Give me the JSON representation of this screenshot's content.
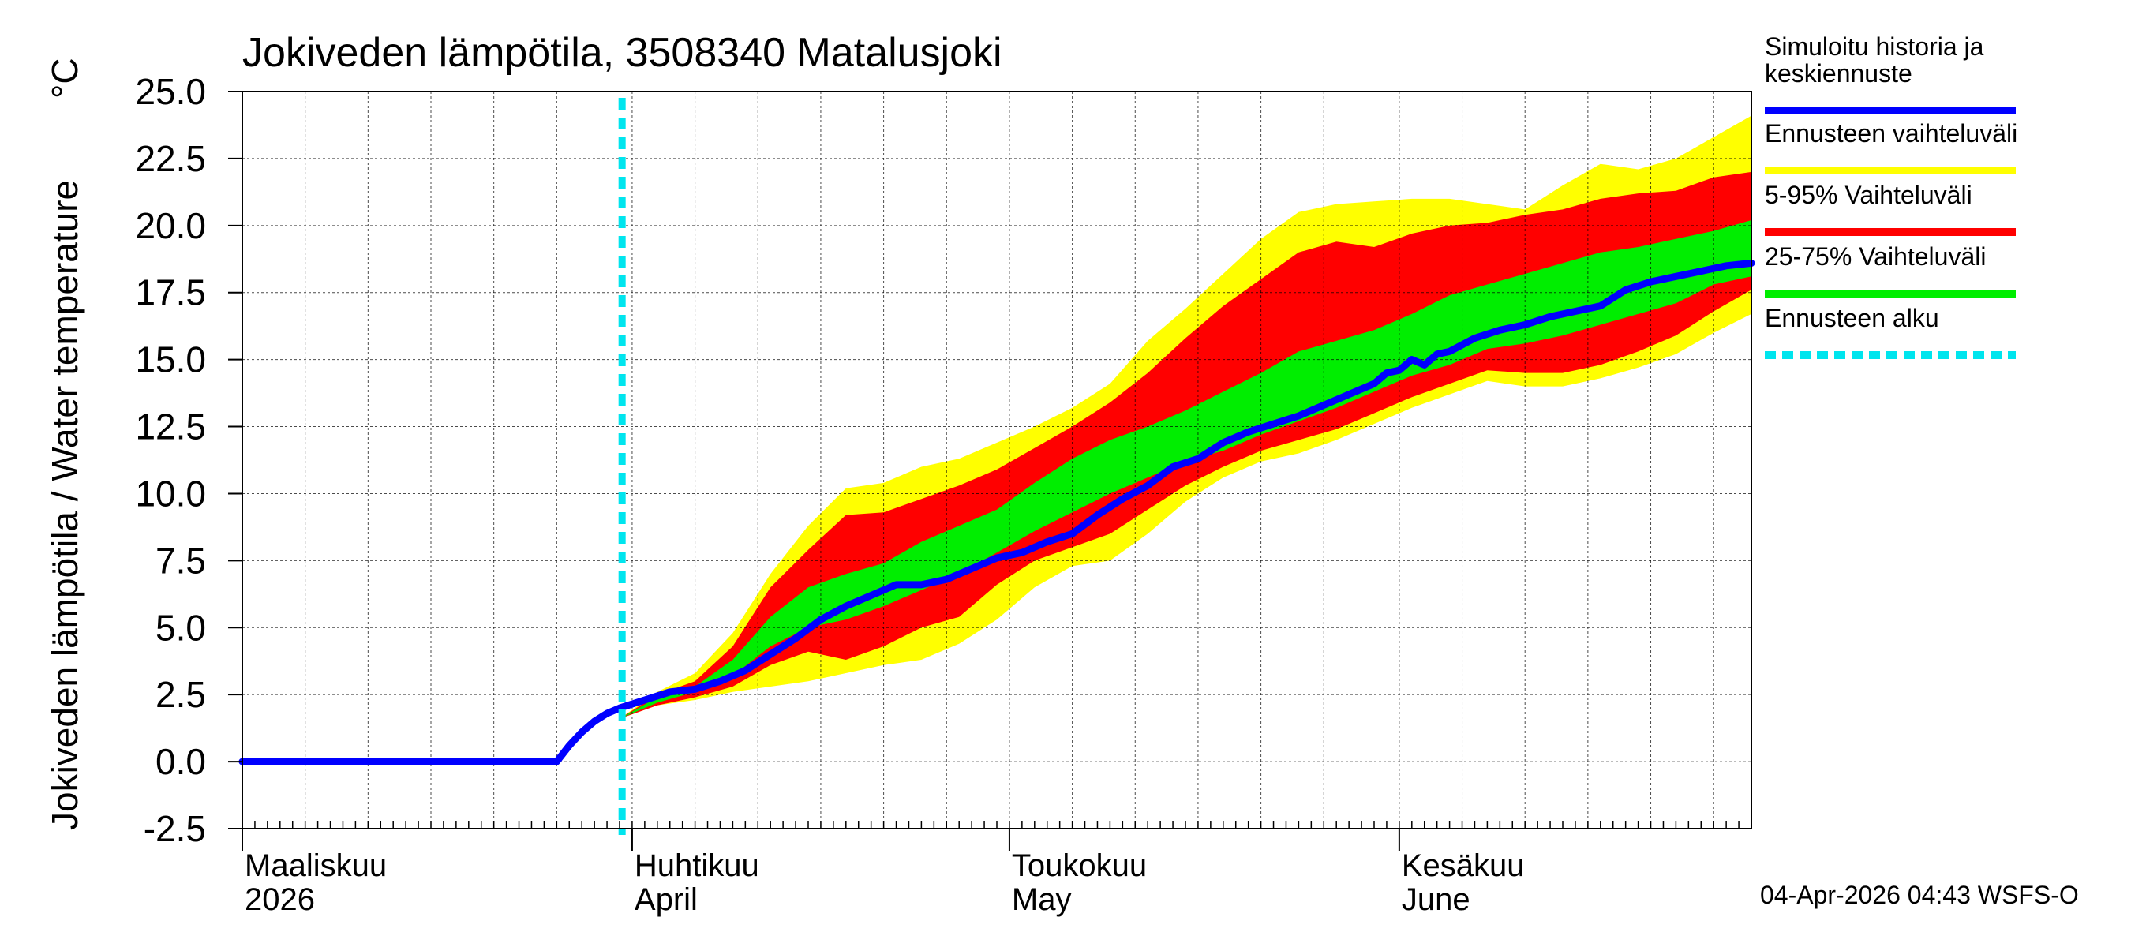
{
  "chart_data": {
    "type": "area",
    "title": "Jokiveden lämpötila, 3508340 Matalusjoki",
    "ylabel": "Jokiveden lämpötila / Water temperature",
    "yunit": "°C",
    "ylim": [
      -2.5,
      25.0
    ],
    "yticks": [
      -2.5,
      0.0,
      2.5,
      5.0,
      7.5,
      10.0,
      12.5,
      15.0,
      17.5,
      20.0,
      22.5,
      25.0
    ],
    "ytick_labels": [
      "-2.5",
      "0.0",
      "2.5",
      "5.0",
      "7.5",
      "10.0",
      "12.5",
      "15.0",
      "17.5",
      "20.0",
      "22.5",
      "25.0"
    ],
    "xlim_days": [
      0,
      120
    ],
    "month_ticks_days": [
      0,
      31,
      61,
      92
    ],
    "x_gridlines_days": [
      5,
      10,
      15,
      20,
      25,
      31,
      36,
      41,
      46,
      51,
      56,
      61,
      66,
      71,
      76,
      81,
      86,
      92,
      97,
      102,
      107,
      112,
      117
    ],
    "x_labels": [
      {
        "day": 0,
        "line1": "Maaliskuu",
        "line2": "2026"
      },
      {
        "day": 31,
        "line1": "Huhtikuu",
        "line2": "April"
      },
      {
        "day": 61,
        "line1": "Toukokuu",
        "line2": "May"
      },
      {
        "day": 92,
        "line1": "Kesäkuu",
        "line2": "June"
      }
    ],
    "forecast_start_day": 30.2,
    "bands": {
      "x_days": [
        30,
        33,
        36,
        39,
        42,
        45,
        48,
        51,
        54,
        57,
        60,
        63,
        66,
        69,
        72,
        75,
        78,
        81,
        84,
        87,
        90,
        93,
        96,
        99,
        102,
        105,
        108,
        111,
        114,
        117,
        120
      ],
      "ennuste_lower": [
        1.6,
        2.1,
        2.3,
        2.6,
        2.8,
        3.0,
        3.3,
        3.6,
        3.8,
        4.4,
        5.3,
        6.5,
        7.3,
        7.5,
        8.5,
        9.7,
        10.6,
        11.2,
        11.5,
        12.0,
        12.6,
        13.2,
        13.7,
        14.2,
        14.0,
        14.0,
        14.3,
        14.7,
        15.2,
        16.0,
        16.7
      ],
      "ennuste_upper": [
        1.6,
        2.6,
        3.3,
        4.8,
        7.0,
        8.8,
        10.2,
        10.4,
        11.0,
        11.3,
        11.9,
        12.5,
        13.2,
        14.1,
        15.7,
        16.9,
        18.2,
        19.5,
        20.5,
        20.8,
        20.9,
        21.0,
        21.0,
        20.8,
        20.6,
        21.5,
        22.3,
        22.1,
        22.5,
        23.3,
        24.1
      ],
      "p5": [
        1.6,
        2.1,
        2.4,
        2.8,
        3.6,
        4.1,
        3.8,
        4.3,
        5.0,
        5.4,
        6.6,
        7.5,
        8.0,
        8.5,
        9.4,
        10.3,
        11.0,
        11.6,
        12.0,
        12.4,
        13.0,
        13.6,
        14.1,
        14.6,
        14.5,
        14.5,
        14.8,
        15.3,
        15.9,
        16.8,
        17.6
      ],
      "p95": [
        1.6,
        2.5,
        3.0,
        4.3,
        6.5,
        7.9,
        9.2,
        9.3,
        9.8,
        10.3,
        10.9,
        11.7,
        12.5,
        13.4,
        14.5,
        15.8,
        17.0,
        18.0,
        19.0,
        19.4,
        19.2,
        19.7,
        20.0,
        20.1,
        20.4,
        20.6,
        21.0,
        21.2,
        21.3,
        21.8,
        22.0
      ],
      "p25": [
        1.6,
        2.2,
        2.6,
        3.2,
        4.3,
        5.0,
        5.3,
        5.8,
        6.4,
        7.0,
        7.8,
        8.6,
        9.3,
        10.0,
        10.6,
        11.2,
        11.6,
        12.2,
        12.7,
        13.2,
        13.8,
        14.4,
        14.8,
        15.4,
        15.6,
        15.9,
        16.3,
        16.7,
        17.1,
        17.8,
        18.1
      ],
      "p75": [
        1.6,
        2.4,
        2.8,
        3.8,
        5.4,
        6.5,
        7.0,
        7.4,
        8.2,
        8.8,
        9.4,
        10.4,
        11.3,
        12.0,
        12.5,
        13.1,
        13.8,
        14.5,
        15.3,
        15.7,
        16.1,
        16.7,
        17.4,
        17.8,
        18.2,
        18.6,
        19.0,
        19.2,
        19.5,
        19.8,
        20.2
      ]
    },
    "series": [
      {
        "name": "Simuloitu historia ja keskiennuste",
        "color": "#0000ff",
        "x": [
          0,
          10,
          20,
          25,
          26,
          27,
          28,
          29,
          30,
          32,
          34,
          36,
          38,
          40,
          42,
          44,
          46,
          48,
          50,
          52,
          54,
          56,
          58,
          60,
          62,
          64,
          66,
          68,
          70,
          72,
          74,
          76,
          78,
          80,
          82,
          84,
          86,
          88,
          90,
          91,
          92,
          93,
          94,
          95,
          96,
          98,
          100,
          102,
          104,
          106,
          108,
          110,
          112,
          114,
          116,
          118,
          120
        ],
        "y": [
          0.0,
          0.0,
          0.0,
          0.0,
          0.6,
          1.1,
          1.5,
          1.8,
          2.0,
          2.3,
          2.6,
          2.7,
          3.0,
          3.4,
          4.0,
          4.6,
          5.3,
          5.8,
          6.2,
          6.6,
          6.6,
          6.8,
          7.2,
          7.6,
          7.8,
          8.2,
          8.5,
          9.2,
          9.8,
          10.3,
          11.0,
          11.3,
          11.9,
          12.3,
          12.6,
          12.9,
          13.3,
          13.7,
          14.1,
          14.5,
          14.6,
          15.0,
          14.8,
          15.2,
          15.3,
          15.8,
          16.1,
          16.3,
          16.6,
          16.8,
          17.0,
          17.6,
          17.9,
          18.1,
          18.3,
          18.5,
          18.6
        ]
      }
    ],
    "legend": [
      {
        "label_line1": "Simuloitu historia ja",
        "label_line2": "keskiennuste",
        "color": "#0000ff",
        "style": "solid"
      },
      {
        "label_line1": "Ennusteen vaihteluväli",
        "label_line2": "",
        "color": "#ffff00",
        "style": "solid"
      },
      {
        "label_line1": "5-95% Vaihteluväli",
        "label_line2": "",
        "color": "#ff0000",
        "style": "solid"
      },
      {
        "label_line1": "25-75% Vaihteluväli",
        "label_line2": "",
        "color": "#00ee00",
        "style": "solid"
      },
      {
        "label_line1": "Ennusteen alku",
        "label_line2": "",
        "color": "#00e5ee",
        "style": "dashed"
      }
    ],
    "legend_position": "right",
    "footer": "04-Apr-2026 04:43 WSFS-O",
    "colors": {
      "yellow": "#ffff00",
      "red": "#ff0000",
      "green": "#00ee00",
      "blue": "#0000ff",
      "cyan": "#00e5ee",
      "grid": "#888888"
    }
  }
}
